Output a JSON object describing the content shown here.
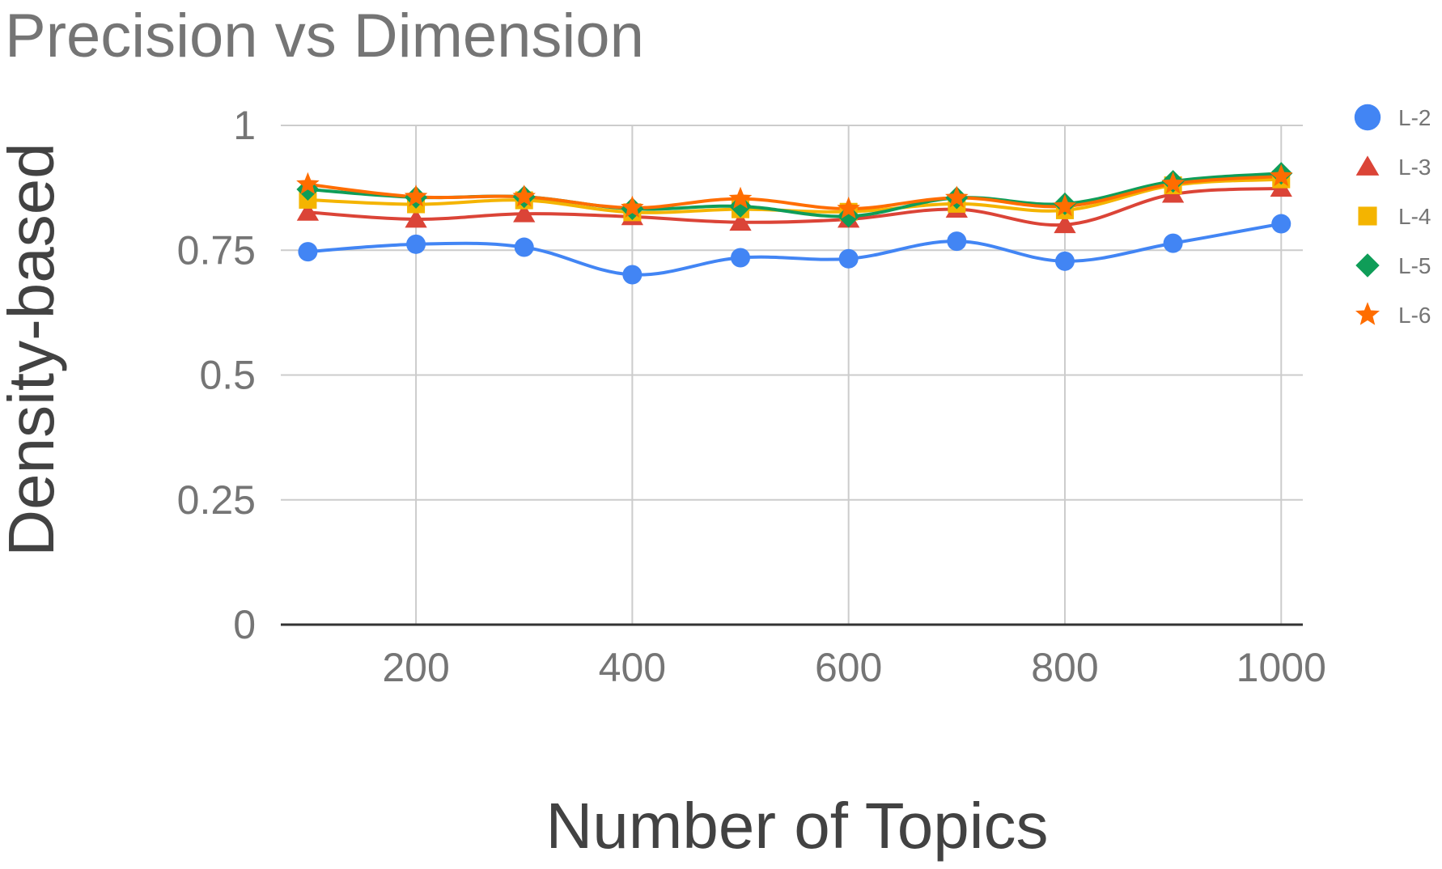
{
  "chart_data": {
    "type": "line",
    "title": "Precision vs Dimension",
    "xlabel": "Number of Topics",
    "ylabel": "Density-based",
    "x": [
      100,
      200,
      300,
      400,
      500,
      600,
      700,
      800,
      900,
      1000
    ],
    "x_ticks": [
      "200",
      "400",
      "600",
      "800",
      "1000"
    ],
    "x_tick_values": [
      200,
      400,
      600,
      800,
      1000
    ],
    "y_ticks": [
      "0",
      "0.25",
      "0.5",
      "0.75",
      "1"
    ],
    "y_tick_values": [
      0,
      0.25,
      0.5,
      0.75,
      1
    ],
    "xlim": [
      75,
      1020
    ],
    "ylim": [
      0,
      1
    ],
    "grid": true,
    "legend_position": "right",
    "series": [
      {
        "name": "L-2",
        "color": "#4285F4",
        "marker": "circle",
        "values": [
          0.747,
          0.762,
          0.756,
          0.701,
          0.735,
          0.733,
          0.768,
          0.728,
          0.764,
          0.803
        ]
      },
      {
        "name": "L-3",
        "color": "#DB4437",
        "marker": "triangle",
        "values": [
          0.826,
          0.812,
          0.823,
          0.817,
          0.806,
          0.812,
          0.832,
          0.801,
          0.862,
          0.874
        ]
      },
      {
        "name": "L-4",
        "color": "#F4B400",
        "marker": "square",
        "values": [
          0.851,
          0.842,
          0.85,
          0.826,
          0.832,
          0.827,
          0.843,
          0.83,
          0.88,
          0.892
        ]
      },
      {
        "name": "L-5",
        "color": "#0F9D58",
        "marker": "diamond",
        "values": [
          0.872,
          0.856,
          0.857,
          0.833,
          0.838,
          0.818,
          0.855,
          0.843,
          0.888,
          0.904
        ]
      },
      {
        "name": "L-6",
        "color": "#FF6D00",
        "marker": "star",
        "values": [
          0.882,
          0.857,
          0.857,
          0.835,
          0.853,
          0.833,
          0.855,
          0.838,
          0.883,
          0.898
        ]
      }
    ]
  }
}
